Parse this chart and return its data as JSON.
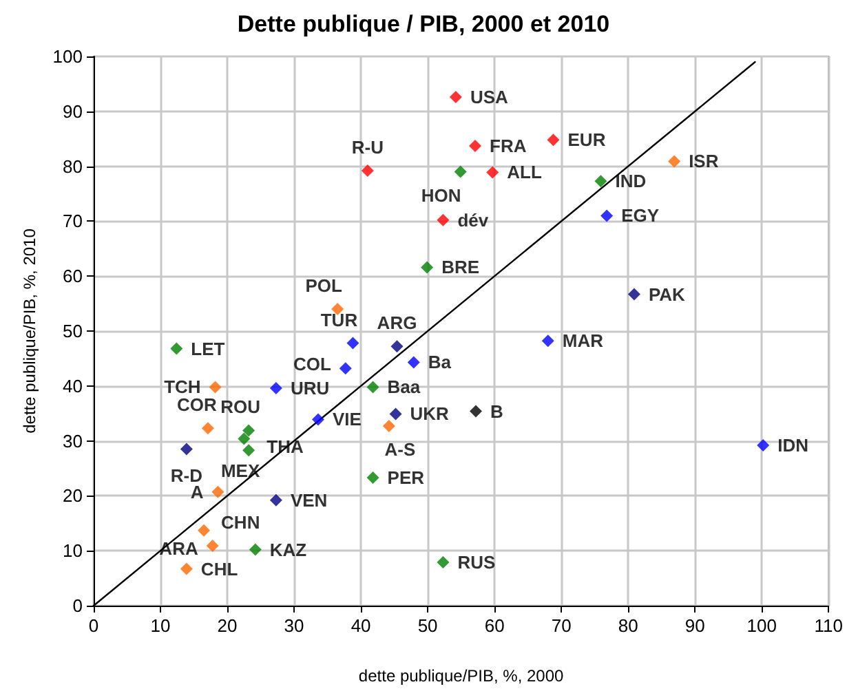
{
  "chart_data": {
    "type": "scatter",
    "title": "Dette publique / PIB, 2000 et 2010",
    "xlabel": "dette publique/PIB, %, 2000",
    "ylabel": "dette publique/PIB, %, 2010",
    "xlim": [
      0,
      110
    ],
    "xticks": [
      0,
      10,
      20,
      30,
      40,
      50,
      60,
      70,
      80,
      90,
      100,
      110
    ],
    "ylim": [
      0,
      100
    ],
    "yticks": [
      0,
      10,
      20,
      30,
      40,
      50,
      60,
      70,
      80,
      90,
      100
    ],
    "grid": true,
    "marker": "diamond",
    "series": [
      {
        "color": "#ff0000",
        "x": [
          54.2,
          41.0,
          57.1,
          68.8,
          59.7,
          52.3
        ],
        "values": [
          92.6,
          79.2,
          83.7,
          84.8,
          78.9,
          70.2
        ],
        "value_labels": [
          "USA",
          "R-U",
          "FRA",
          "EUR",
          "ALL",
          "dév"
        ]
      },
      {
        "color": "#008000",
        "x": [
          54.9,
          49.9,
          75.9,
          12.4,
          41.8,
          23.2,
          22.5,
          23.2,
          41.8,
          24.2,
          52.3
        ],
        "values": [
          79.0,
          61.6,
          77.3,
          46.8,
          39.8,
          31.9,
          30.4,
          28.3,
          23.3,
          10.2,
          7.9
        ],
        "value_labels": [
          "HON",
          "BRE",
          "IND",
          "LET",
          "Baa",
          "ROU",
          "THA",
          "MEX",
          "PER",
          "KAZ",
          "RUS"
        ]
      },
      {
        "color": "#0000ff",
        "x": [
          76.8,
          38.8,
          37.7,
          47.9,
          27.3,
          33.6,
          68.0,
          100.2
        ],
        "values": [
          71.0,
          47.8,
          43.2,
          44.3,
          39.6,
          33.9,
          48.2,
          29.2
        ],
        "value_labels": [
          "EGY",
          "TUR",
          "COL",
          "Ba",
          "URU",
          "VIE",
          "MAR",
          "IDN"
        ]
      },
      {
        "color": "#000080",
        "x": [
          80.9,
          45.4,
          45.2,
          13.9,
          27.3
        ],
        "values": [
          56.7,
          47.2,
          34.9,
          28.5,
          19.2
        ],
        "value_labels": [
          "PAK",
          "ARG",
          "UKR",
          "R-D",
          "VEN"
        ]
      },
      {
        "color": "#ff6600",
        "x": [
          86.9,
          36.5,
          18.2,
          17.1,
          44.2,
          18.6,
          16.5,
          17.8,
          13.9
        ],
        "values": [
          80.9,
          54.0,
          39.8,
          32.3,
          32.7,
          20.7,
          13.7,
          10.9,
          6.7
        ],
        "value_labels": [
          "ISR",
          "POL",
          "TCH",
          "COR",
          "A-S",
          "A",
          "CHN",
          "ARA",
          "CHL"
        ]
      },
      {
        "color": "#000000",
        "x": [
          57.2
        ],
        "values": [
          35.4
        ],
        "value_labels": [
          "B"
        ]
      },
      {
        "type": "line",
        "color": "#000000",
        "marker": "none",
        "x": [
          0,
          99
        ],
        "values": [
          0,
          99
        ]
      }
    ]
  }
}
